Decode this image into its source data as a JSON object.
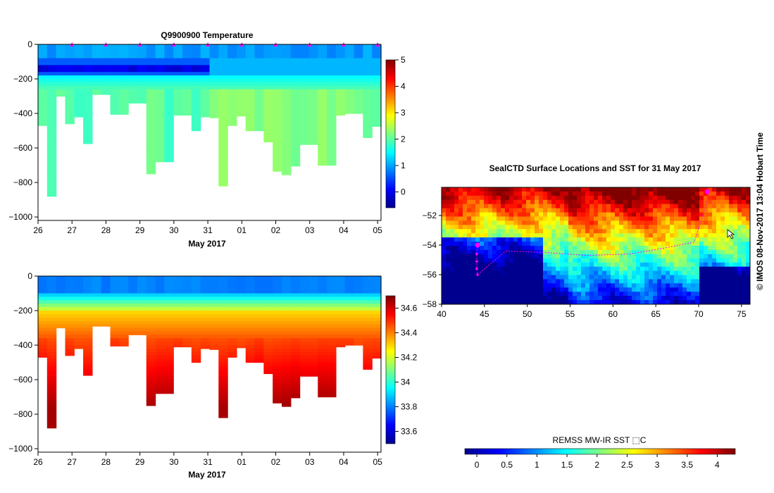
{
  "page": {
    "top_title": "Q9900900  Temperature",
    "credit": "© IMOS 08-Nov-2017 13:04 Hobart Time",
    "map_title": "SealCTD Surface Locations and SST for 31 May 2017",
    "sst_colorbar_label": "REMSS MW-IR SST ⬚C",
    "time_axis_label": "May 2017"
  },
  "colors": {
    "jet": [
      "#00008f",
      "#0000ff",
      "#0080ff",
      "#00ffff",
      "#80ff80",
      "#ffff00",
      "#ff8000",
      "#ff0000",
      "#800000"
    ],
    "profile_marker": "#ff00ff"
  },
  "icons": {
    "map_cursor": "cursor-arrow-icon"
  },
  "chart_data": [
    {
      "type": "heatmap",
      "title": "Q9900900  Temperature",
      "xlabel": "May 2017",
      "ylabel": "",
      "x_tick_labels": [
        "26",
        "27",
        "28",
        "29",
        "30",
        "31",
        "01",
        "02",
        "03",
        "04",
        "05"
      ],
      "x_tick_values": [
        0,
        1,
        2,
        3,
        4,
        5,
        6,
        7,
        8,
        9,
        10
      ],
      "xlim": [
        0,
        10.1
      ],
      "y_tick_values": [
        0,
        -200,
        -400,
        -600,
        -800,
        -1000
      ],
      "y_tick_labels": [
        "0",
        "−200",
        "−400",
        "−600",
        "−800",
        "−1000"
      ],
      "ylim": [
        -1020,
        0
      ],
      "colorbar": {
        "min": -0.6,
        "max": 5,
        "ticks": [
          0,
          1,
          2,
          3,
          4,
          5
        ]
      },
      "profile_depth_bottoms": [
        -470,
        -880,
        -300,
        -460,
        -420,
        -575,
        -290,
        -290,
        -405,
        -405,
        -340,
        -340,
        -750,
        -680,
        -680,
        -410,
        -410,
        -500,
        -420,
        -425,
        -820,
        -470,
        -415,
        -500,
        -500,
        -565,
        -735,
        -755,
        -705,
        -580,
        -580,
        -700,
        -700,
        -410,
        -400,
        -400,
        -540,
        -475
      ],
      "profile_markers_x": [
        1,
        2,
        3,
        4,
        5,
        6,
        7,
        8,
        9,
        10
      ]
    },
    {
      "type": "heatmap",
      "title": "",
      "xlabel": "May 2017",
      "ylabel": "",
      "x_tick_labels": [
        "26",
        "27",
        "28",
        "29",
        "30",
        "31",
        "01",
        "02",
        "03",
        "04",
        "05"
      ],
      "x_tick_values": [
        0,
        1,
        2,
        3,
        4,
        5,
        6,
        7,
        8,
        9,
        10
      ],
      "xlim": [
        0,
        10.1
      ],
      "y_tick_values": [
        0,
        -200,
        -400,
        -600,
        -800,
        -1000
      ],
      "y_tick_labels": [
        "0",
        "−200",
        "−400",
        "−600",
        "−800",
        "−1000"
      ],
      "ylim": [
        -1020,
        0
      ],
      "colorbar": {
        "min": 33.5,
        "max": 34.7,
        "ticks": [
          33.6,
          33.8,
          34,
          34.2,
          34.4,
          34.6
        ],
        "tick_labels": [
          "33.6",
          "33.8",
          "34",
          "34.2",
          "34.4",
          "34.6"
        ]
      },
      "profile_depth_bottoms": [
        -470,
        -880,
        -300,
        -460,
        -420,
        -575,
        -290,
        -290,
        -405,
        -405,
        -340,
        -340,
        -750,
        -680,
        -680,
        -410,
        -410,
        -500,
        -420,
        -425,
        -820,
        -470,
        -415,
        -500,
        -500,
        -565,
        -735,
        -755,
        -705,
        -580,
        -580,
        -700,
        -700,
        -410,
        -400,
        -400,
        -540,
        -475
      ]
    },
    {
      "type": "heatmap",
      "title": "SealCTD Surface Locations and SST for 31 May 2017",
      "xlabel": "",
      "ylabel": "",
      "x_tick_labels": [
        "40",
        "45",
        "50",
        "55",
        "60",
        "65",
        "70",
        "75"
      ],
      "x_tick_values": [
        40,
        45,
        50,
        55,
        60,
        65,
        70,
        75
      ],
      "xlim": [
        40,
        76
      ],
      "y_tick_labels": [
        "−52",
        "−54",
        "−56",
        "−58"
      ],
      "y_tick_values": [
        -52,
        -54,
        -56,
        -58
      ],
      "ylim": [
        -58,
        -50.1
      ],
      "colorbar": {
        "label": "REMSS MW-IR SST ⬚C",
        "min": -0.2,
        "max": 4.3,
        "ticks": [
          0,
          0.5,
          1,
          1.5,
          2,
          2.5,
          3,
          3.5,
          4
        ],
        "tick_labels": [
          "0",
          "0.5",
          "1",
          "1.5",
          "2",
          "2.5",
          "3",
          "3.5",
          "4"
        ]
      },
      "track_points": [
        [
          44.2,
          -54.1
        ],
        [
          44.1,
          -54.6
        ],
        [
          44.1,
          -55.1
        ],
        [
          44.1,
          -55.6
        ],
        [
          44.2,
          -56.0
        ],
        [
          47.5,
          -54.4
        ],
        [
          52.0,
          -54.5
        ],
        [
          57.0,
          -54.7
        ],
        [
          62.0,
          -54.6
        ],
        [
          66.0,
          -54.2
        ],
        [
          69.5,
          -53.8
        ],
        [
          71.0,
          -51.0
        ],
        [
          71.1,
          -50.4
        ]
      ],
      "track_end_markers": [
        [
          44.2,
          -54.0
        ],
        [
          71.0,
          -50.4
        ]
      ]
    }
  ]
}
